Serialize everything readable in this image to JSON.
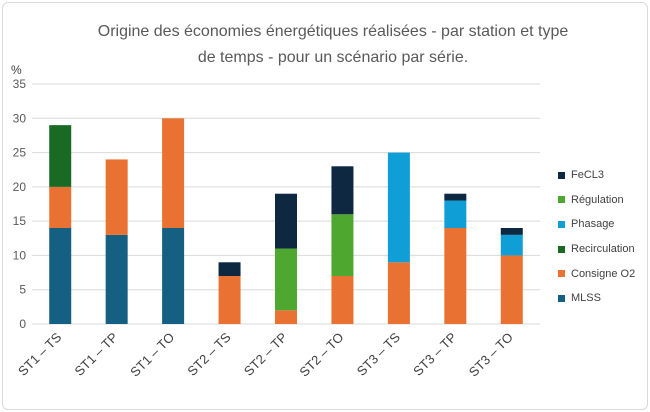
{
  "chart_data": {
    "type": "bar",
    "stacked": true,
    "title": [
      "Origine des économies énergétiques réalisées - par station et type",
      "de temps - pour un scénario par série."
    ],
    "ylabel": "%",
    "ylim": [
      0,
      35
    ],
    "yticks": [
      0,
      5,
      10,
      15,
      20,
      25,
      30,
      35
    ],
    "grid": true,
    "legend_position": "right",
    "categories": [
      "ST1 – TS",
      "ST1 – TP",
      "ST1 – TO",
      "ST2 – TS",
      "ST2 – TP",
      "ST2 – TO",
      "ST3 – TS",
      "ST3 – TP",
      "ST3 – TO"
    ],
    "series": [
      {
        "name": "MLSS",
        "color": "#156082",
        "values": [
          14,
          13,
          14,
          0,
          0,
          0,
          0,
          0,
          0
        ]
      },
      {
        "name": "Consigne O2",
        "color": "#e97132",
        "values": [
          6,
          11,
          16,
          7,
          2,
          7,
          9,
          14,
          10
        ]
      },
      {
        "name": "Recirculation",
        "color": "#196b24",
        "values": [
          9,
          0,
          0,
          0,
          0,
          0,
          0,
          0,
          0
        ]
      },
      {
        "name": "Phasage",
        "color": "#0f9ed5",
        "values": [
          0,
          0,
          0,
          0,
          0,
          0,
          16,
          4,
          3
        ]
      },
      {
        "name": "Régulation",
        "color": "#4ea72e",
        "values": [
          0,
          0,
          0,
          0,
          9,
          9,
          0,
          0,
          0
        ]
      },
      {
        "name": "FeCL3",
        "color": "#0e2841",
        "values": [
          0,
          0,
          0,
          2,
          8,
          7,
          0,
          1,
          1
        ]
      }
    ]
  }
}
